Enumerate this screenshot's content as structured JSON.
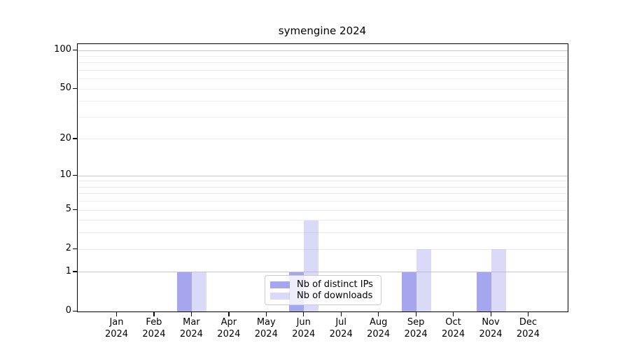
{
  "chart_data": {
    "type": "bar",
    "title": "symengine 2024",
    "categories": [
      {
        "month": "Jan",
        "year": "2024"
      },
      {
        "month": "Feb",
        "year": "2024"
      },
      {
        "month": "Mar",
        "year": "2024"
      },
      {
        "month": "Apr",
        "year": "2024"
      },
      {
        "month": "May",
        "year": "2024"
      },
      {
        "month": "Jun",
        "year": "2024"
      },
      {
        "month": "Jul",
        "year": "2024"
      },
      {
        "month": "Aug",
        "year": "2024"
      },
      {
        "month": "Sep",
        "year": "2024"
      },
      {
        "month": "Oct",
        "year": "2024"
      },
      {
        "month": "Nov",
        "year": "2024"
      },
      {
        "month": "Dec",
        "year": "2024"
      }
    ],
    "series": [
      {
        "name": "Nb of distinct IPs",
        "color": "#a6a6ee",
        "values": [
          0,
          0,
          1,
          0,
          0,
          1,
          0,
          0,
          1,
          0,
          1,
          0
        ]
      },
      {
        "name": "Nb of downloads",
        "color": "rgba(166, 166, 238, 0.42)",
        "values": [
          0,
          0,
          1,
          0,
          0,
          4,
          0,
          0,
          2,
          0,
          2,
          0
        ]
      }
    ],
    "yaxis": {
      "scale": "log10(1+value)",
      "tick_values": [
        0,
        1,
        2,
        5,
        10,
        20,
        50,
        100
      ],
      "strong_gridlines": [
        1,
        10,
        100
      ],
      "light_gridlines": [
        2,
        3,
        4,
        5,
        6,
        7,
        8,
        9,
        20,
        30,
        40,
        50,
        60,
        70,
        80,
        90
      ],
      "max_value": 100
    },
    "legend_position": "lower center",
    "grid": true
  },
  "colors": {
    "strong_grid": "#c6c6c6",
    "light_grid": "#ededed",
    "spine": "#000000",
    "text": "#000000"
  }
}
